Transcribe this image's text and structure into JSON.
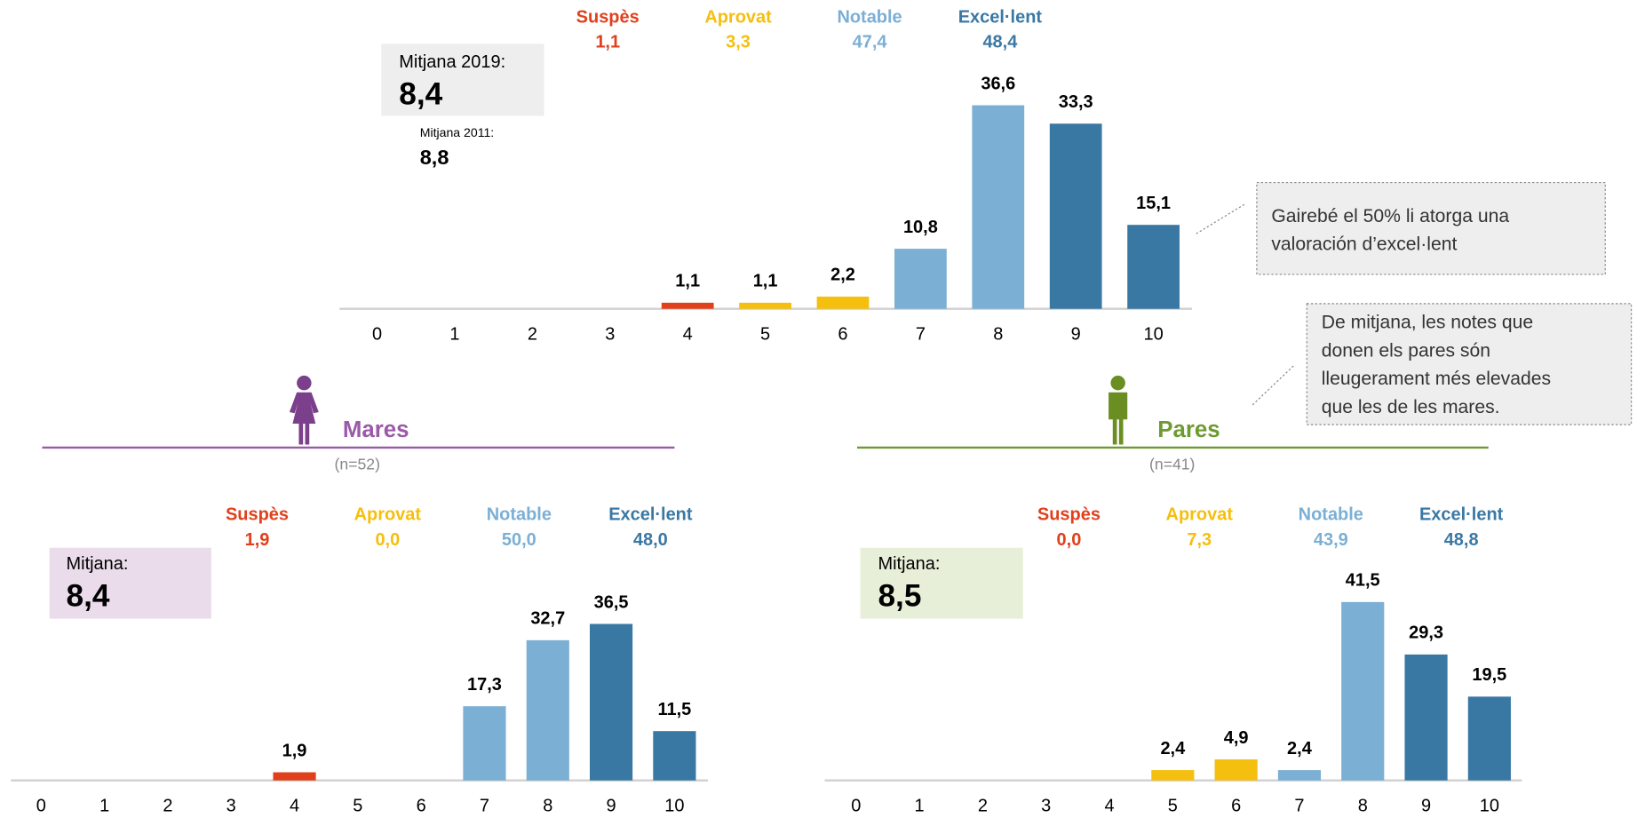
{
  "chart_data": [
    {
      "type": "bar",
      "categories": [
        "0",
        "1",
        "2",
        "3",
        "4",
        "5",
        "6",
        "7",
        "8",
        "9",
        "10"
      ],
      "values": [
        0,
        0,
        0,
        0,
        1.1,
        1.1,
        2.2,
        10.8,
        36.6,
        33.3,
        15.1
      ],
      "value_labels": [
        null,
        null,
        null,
        null,
        "1,1",
        "1,1",
        "2,2",
        "10,8",
        "36,6",
        "33,3",
        "15,1"
      ],
      "colors": [
        "#e0401c",
        "#e0401c",
        "#e0401c",
        "#e0401c",
        "#e0401c",
        "#f5bf0f",
        "#f5bf0f",
        "#7bafd4",
        "#7bafd4",
        "#3a78a4",
        "#3a78a4"
      ],
      "groups": [
        {
          "name": "Suspès",
          "value": 1.1,
          "value_label": "1,1",
          "color": "#e0401c"
        },
        {
          "name": "Aprovat",
          "value": 3.3,
          "value_label": "3,3",
          "color": "#f5bf0f"
        },
        {
          "name": "Notable",
          "value": 47.4,
          "value_label": "47,4",
          "color": "#7bafd4"
        },
        {
          "name": "Excel·lent",
          "value": 48.4,
          "value_label": "48,4",
          "color": "#3a78a4"
        }
      ],
      "mean": {
        "label": "Mitjana 2019:",
        "value": 8.4,
        "value_label": "8,4"
      },
      "mean_previous": {
        "label": "Mitjana 2011:",
        "value": 8.8,
        "value_label": "8,8"
      },
      "annotation": [
        "Gairebé el 50% li atorga una",
        "valoración d’excel·lent"
      ]
    },
    {
      "type": "bar",
      "title": "Mares",
      "subtitle": "(n=52)",
      "categories": [
        "0",
        "1",
        "2",
        "3",
        "4",
        "5",
        "6",
        "7",
        "8",
        "9",
        "10"
      ],
      "values": [
        0,
        0,
        0,
        0,
        1.9,
        0,
        0,
        17.3,
        32.7,
        36.5,
        11.5
      ],
      "value_labels": [
        null,
        null,
        null,
        null,
        "1,9",
        null,
        null,
        "17,3",
        "32,7",
        "36,5",
        "11,5"
      ],
      "colors": [
        "#e0401c",
        "#e0401c",
        "#e0401c",
        "#e0401c",
        "#e0401c",
        "#f5bf0f",
        "#f5bf0f",
        "#7bafd4",
        "#7bafd4",
        "#3a78a4",
        "#3a78a4"
      ],
      "groups": [
        {
          "name": "Suspès",
          "value": 1.9,
          "value_label": "1,9",
          "color": "#e0401c"
        },
        {
          "name": "Aprovat",
          "value": 0,
          "value_label": "0,0",
          "color": "#f5bf0f"
        },
        {
          "name": "Notable",
          "value": 50,
          "value_label": "50,0",
          "color": "#7bafd4"
        },
        {
          "name": "Excel·lent",
          "value": 48,
          "value_label": "48,0",
          "color": "#3a78a4"
        }
      ],
      "mean": {
        "label": "Mitjana:",
        "value": 8.4,
        "value_label": "8,4"
      }
    },
    {
      "type": "bar",
      "title": "Pares",
      "subtitle": "(n=41)",
      "categories": [
        "0",
        "1",
        "2",
        "3",
        "4",
        "5",
        "6",
        "7",
        "8",
        "9",
        "10"
      ],
      "values": [
        0,
        0,
        0,
        0,
        0,
        2.4,
        4.9,
        2.4,
        41.5,
        29.3,
        19.5
      ],
      "value_labels": [
        null,
        null,
        null,
        null,
        null,
        "2,4",
        "4,9",
        "2,4",
        "41,5",
        "29,3",
        "19,5"
      ],
      "colors": [
        "#e0401c",
        "#e0401c",
        "#e0401c",
        "#e0401c",
        "#e0401c",
        "#f5bf0f",
        "#f5bf0f",
        "#7bafd4",
        "#7bafd4",
        "#3a78a4",
        "#3a78a4"
      ],
      "groups": [
        {
          "name": "Suspès",
          "value": 0,
          "value_label": "0,0",
          "color": "#e0401c"
        },
        {
          "name": "Aprovat",
          "value": 7.3,
          "value_label": "7,3",
          "color": "#f5bf0f"
        },
        {
          "name": "Notable",
          "value": 43.9,
          "value_label": "43,9",
          "color": "#7bafd4"
        },
        {
          "name": "Excel·lent",
          "value": 48.8,
          "value_label": "48,8",
          "color": "#3a78a4"
        }
      ],
      "mean": {
        "label": "Mitjana:",
        "value": 8.5,
        "value_label": "8,5"
      },
      "annotation": [
        "De mitjana, les notes que",
        "donen els pares són",
        "lleugerament més elevades",
        "que les de les mares."
      ]
    }
  ]
}
